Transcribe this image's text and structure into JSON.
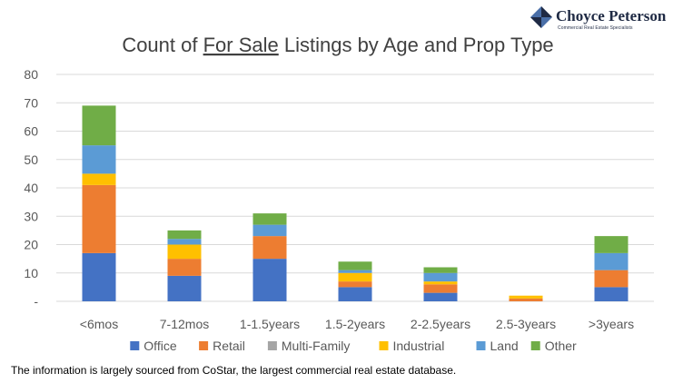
{
  "logo": {
    "name": "Choyce Peterson",
    "tagline": "Commercial Real Estate Specialists",
    "colors": {
      "dark": "#1f2a44",
      "light": "#4a6fa8"
    }
  },
  "footnote": "The information is largely sourced from CoStar, the largest commercial real estate database.",
  "chart_data": {
    "type": "bar",
    "stacked": true,
    "title": {
      "pre": "Count of ",
      "underlined": "For Sale",
      "post": " Listings by Age and Prop Type"
    },
    "xlabel": "",
    "ylabel": "",
    "ylim": [
      0,
      80
    ],
    "yticks": [
      0,
      10,
      20,
      30,
      40,
      50,
      60,
      70,
      80
    ],
    "ytick_labels": [
      "-",
      "10",
      "20",
      "30",
      "40",
      "50",
      "60",
      "70",
      "80"
    ],
    "grid": true,
    "legend": "bottom",
    "categories": [
      "<6mos",
      "7-12mos",
      "1-1.5years",
      "1.5-2years",
      "2-2.5years",
      "2.5-3years",
      ">3years"
    ],
    "series": [
      {
        "name": "Office",
        "color": "#4472C4",
        "values": [
          17,
          9,
          15,
          5,
          3,
          0,
          5
        ]
      },
      {
        "name": "Retail",
        "color": "#ED7D31",
        "values": [
          24,
          6,
          8,
          2,
          3,
          1,
          6
        ]
      },
      {
        "name": "Multi-Family",
        "color": "#A5A5A5",
        "values": [
          0,
          0,
          0,
          0,
          0,
          0,
          0
        ]
      },
      {
        "name": "Industrial",
        "color": "#FFC000",
        "values": [
          4,
          5,
          0,
          3,
          1,
          1,
          0
        ]
      },
      {
        "name": "Land",
        "color": "#5B9BD5",
        "values": [
          10,
          2,
          4,
          1,
          3,
          0,
          6
        ]
      },
      {
        "name": "Other",
        "color": "#70AD47",
        "values": [
          14,
          3,
          4,
          3,
          2,
          0,
          6
        ]
      }
    ]
  }
}
